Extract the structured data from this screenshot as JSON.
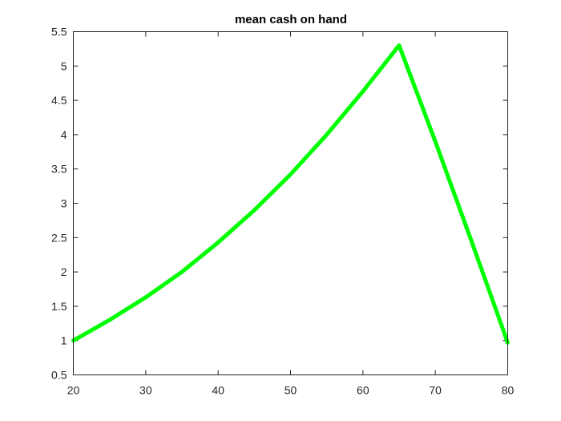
{
  "chart_data": {
    "type": "line",
    "title": "mean cash on hand",
    "xlabel": "",
    "ylabel": "",
    "xlim": [
      20,
      80
    ],
    "ylim": [
      0.5,
      5.5
    ],
    "xticks": [
      20,
      30,
      40,
      50,
      60,
      70,
      80
    ],
    "yticks": [
      0.5,
      1,
      1.5,
      2,
      2.5,
      3,
      3.5,
      4,
      4.5,
      5,
      5.5
    ],
    "xtick_labels": [
      "20",
      "30",
      "40",
      "50",
      "60",
      "70",
      "80"
    ],
    "ytick_labels": [
      "0.5",
      "1",
      "1.5",
      "2",
      "2.5",
      "3",
      "3.5",
      "4",
      "4.5",
      "5",
      "5.5"
    ],
    "grid": false,
    "series": [
      {
        "color": "#00ff00",
        "x": [
          20,
          25,
          30,
          35,
          40,
          45,
          50,
          55,
          60,
          65,
          70,
          75,
          80
        ],
        "y": [
          1.0,
          1.3,
          1.63,
          2.0,
          2.43,
          2.9,
          3.42,
          4.0,
          4.63,
          5.3,
          3.9,
          2.45,
          0.97
        ]
      }
    ]
  }
}
